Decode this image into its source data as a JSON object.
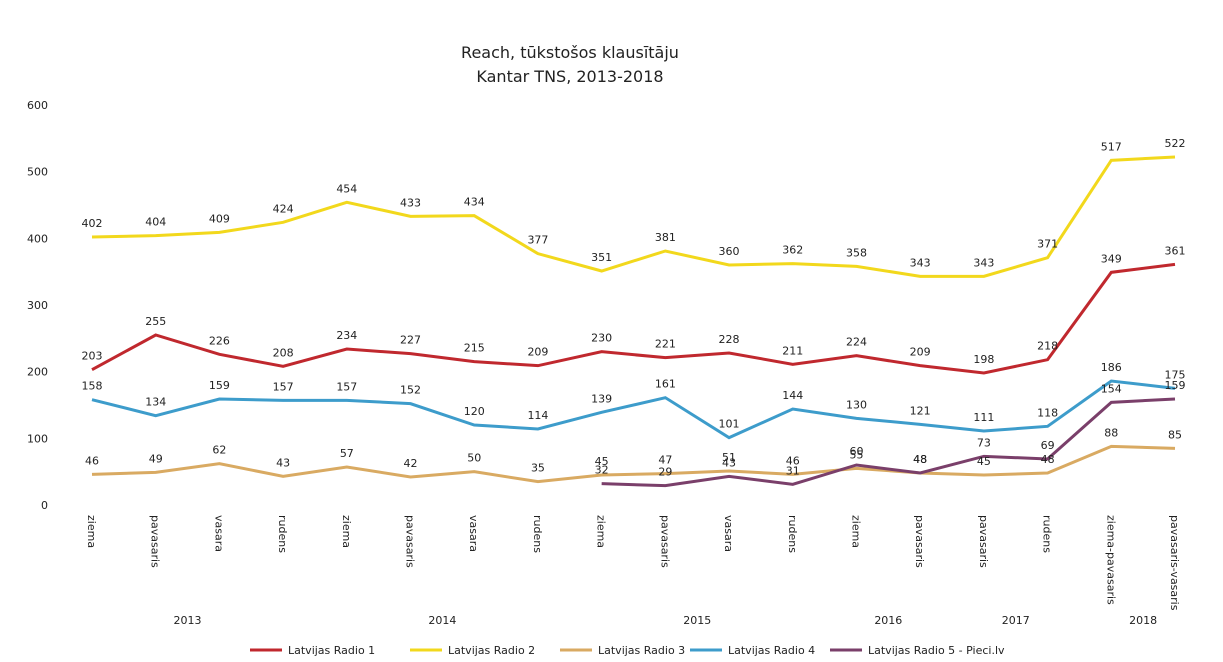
{
  "chart_data": {
    "type": "line",
    "title": "Reach, tūkstošos klausītāju",
    "subtitle": "Kantar TNS, 2013-2018",
    "categories": [
      "ziema",
      "pavasaris",
      "vasara",
      "rudens",
      "ziema",
      "pavasaris",
      "vasara",
      "rudens",
      "ziema",
      "pavasaris",
      "vasara",
      "rudens",
      "ziema",
      "pavasaris",
      "pavasaris",
      "rudens",
      "ziema-pavasaris",
      "pavasaris-vasaris"
    ],
    "x_groups": [
      {
        "label": "2013",
        "span": 4
      },
      {
        "label": "2014",
        "span": 4
      },
      {
        "label": "2015",
        "span": 4
      },
      {
        "label": "2016",
        "span": 2
      },
      {
        "label": "2017",
        "span": 2
      },
      {
        "label": "2018",
        "span": 2
      }
    ],
    "series": [
      {
        "name": "Latvijas Radio 1",
        "color": "#c0282e",
        "values": [
          203,
          255,
          226,
          208,
          234,
          227,
          215,
          209,
          230,
          221,
          228,
          211,
          224,
          209,
          198,
          218,
          349,
          361
        ]
      },
      {
        "name": "Latvijas Radio 2",
        "color": "#f2d81c",
        "values": [
          402,
          404,
          409,
          424,
          454,
          433,
          434,
          377,
          351,
          381,
          360,
          362,
          358,
          343,
          343,
          371,
          517,
          522
        ]
      },
      {
        "name": "Latvijas Radio 3",
        "color": "#d9aa62",
        "values": [
          46,
          49,
          62,
          43,
          57,
          42,
          50,
          35,
          45,
          47,
          51,
          46,
          55,
          48,
          45,
          48,
          88,
          85
        ]
      },
      {
        "name": "Latvijas Radio 4",
        "color": "#3d9ccb",
        "values": [
          158,
          134,
          159,
          157,
          157,
          152,
          120,
          114,
          139,
          161,
          101,
          144,
          130,
          121,
          111,
          118,
          186,
          175
        ]
      },
      {
        "name": "Latvijas Radio 5 - Pieci.lv",
        "color": "#7a3f6a",
        "values": [
          null,
          null,
          null,
          null,
          null,
          null,
          null,
          null,
          32,
          29,
          43,
          31,
          60,
          48,
          73,
          69,
          154,
          159
        ]
      }
    ],
    "ylim": [
      0,
      600
    ],
    "yticks": [
      0,
      100,
      200,
      300,
      400,
      500,
      600
    ],
    "grid": false,
    "legend": "bottom"
  }
}
